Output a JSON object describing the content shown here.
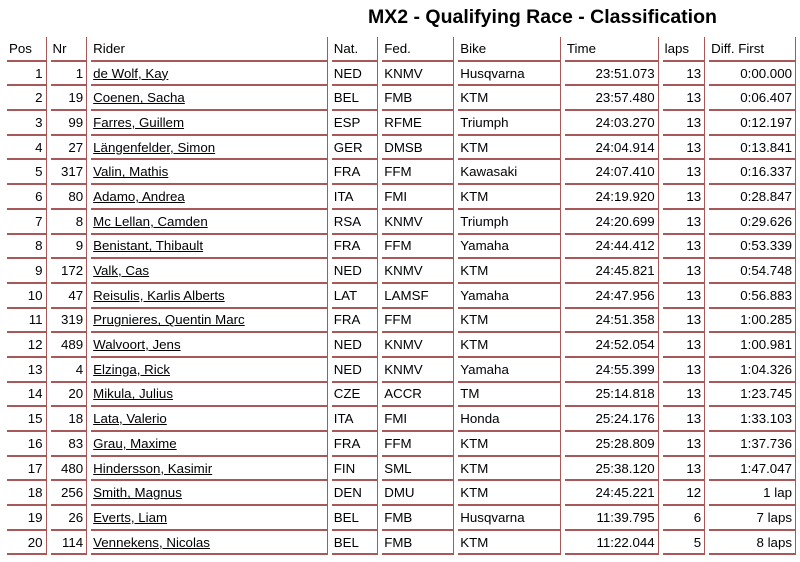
{
  "title": "MX2 - Qualifying Race - Classification",
  "headers": [
    "Pos",
    "Nr",
    "Rider",
    "Nat.",
    "Fed.",
    "Bike",
    "Time",
    "laps",
    "Diff. First"
  ],
  "rows": [
    [
      "1",
      "1",
      "de Wolf, Kay",
      "NED",
      "KNMV",
      "Husqvarna",
      "23:51.073",
      "13",
      "0:00.000"
    ],
    [
      "2",
      "19",
      "Coenen, Sacha",
      "BEL",
      "FMB",
      "KTM",
      "23:57.480",
      "13",
      "0:06.407"
    ],
    [
      "3",
      "99",
      "Farres, Guillem",
      "ESP",
      "RFME",
      "Triumph",
      "24:03.270",
      "13",
      "0:12.197"
    ],
    [
      "4",
      "27",
      "Längenfelder, Simon",
      "GER",
      "DMSB",
      "KTM",
      "24:04.914",
      "13",
      "0:13.841"
    ],
    [
      "5",
      "317",
      "Valin, Mathis",
      "FRA",
      "FFM",
      "Kawasaki",
      "24:07.410",
      "13",
      "0:16.337"
    ],
    [
      "6",
      "80",
      "Adamo, Andrea",
      "ITA",
      "FMI",
      "KTM",
      "24:19.920",
      "13",
      "0:28.847"
    ],
    [
      "7",
      "8",
      "Mc Lellan, Camden",
      "RSA",
      "KNMV",
      "Triumph",
      "24:20.699",
      "13",
      "0:29.626"
    ],
    [
      "8",
      "9",
      "Benistant, Thibault",
      "FRA",
      "FFM",
      "Yamaha",
      "24:44.412",
      "13",
      "0:53.339"
    ],
    [
      "9",
      "172",
      "Valk, Cas",
      "NED",
      "KNMV",
      "KTM",
      "24:45.821",
      "13",
      "0:54.748"
    ],
    [
      "10",
      "47",
      "Reisulis, Karlis Alberts",
      "LAT",
      "LAMSF",
      "Yamaha",
      "24:47.956",
      "13",
      "0:56.883"
    ],
    [
      "11",
      "319",
      "Prugnieres, Quentin Marc",
      "FRA",
      "FFM",
      "KTM",
      "24:51.358",
      "13",
      "1:00.285"
    ],
    [
      "12",
      "489",
      "Walvoort, Jens",
      "NED",
      "KNMV",
      "KTM",
      "24:52.054",
      "13",
      "1:00.981"
    ],
    [
      "13",
      "4",
      "Elzinga, Rick",
      "NED",
      "KNMV",
      "Yamaha",
      "24:55.399",
      "13",
      "1:04.326"
    ],
    [
      "14",
      "20",
      "Mikula, Julius",
      "CZE",
      "ACCR",
      "TM",
      "25:14.818",
      "13",
      "1:23.745"
    ],
    [
      "15",
      "18",
      "Lata, Valerio",
      "ITA",
      "FMI",
      "Honda",
      "25:24.176",
      "13",
      "1:33.103"
    ],
    [
      "16",
      "83",
      "Grau, Maxime",
      "FRA",
      "FFM",
      "KTM",
      "25:28.809",
      "13",
      "1:37.736"
    ],
    [
      "17",
      "480",
      "Hindersson, Kasimir",
      "FIN",
      "SML",
      "KTM",
      "25:38.120",
      "13",
      "1:47.047"
    ],
    [
      "18",
      "256",
      "Smith, Magnus",
      "DEN",
      "DMU",
      "KTM",
      "24:45.221",
      "12",
      "1 lap"
    ],
    [
      "19",
      "26",
      "Everts, Liam",
      "BEL",
      "FMB",
      "Husqvarna",
      "11:39.795",
      "6",
      "7 laps"
    ],
    [
      "20",
      "114",
      "Vennekens, Nicolas",
      "BEL",
      "FMB",
      "KTM",
      "11:22.044",
      "5",
      "8 laps"
    ]
  ]
}
